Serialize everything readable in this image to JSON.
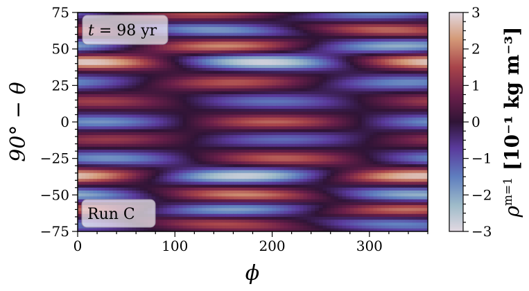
{
  "chart_data": {
    "type": "heatmap",
    "xlabel": "ϕ",
    "ylabel": "90° − θ",
    "xlim": [
      0,
      360
    ],
    "ylim": [
      -75,
      75
    ],
    "x_ticks": [
      {
        "value": 0,
        "label": "0"
      },
      {
        "value": 100,
        "label": "100"
      },
      {
        "value": 200,
        "label": "200"
      },
      {
        "value": 300,
        "label": "300"
      }
    ],
    "y_ticks": [
      {
        "value": 75,
        "label": "75"
      },
      {
        "value": 50,
        "label": "50"
      },
      {
        "value": 25,
        "label": "25"
      },
      {
        "value": 0,
        "label": "0"
      },
      {
        "value": -25,
        "label": "−25"
      },
      {
        "value": -50,
        "label": "−50"
      },
      {
        "value": -75,
        "label": "−75"
      }
    ],
    "colorbar": {
      "label": "ρ^{m=1} [10⁻¹ kg m⁻³]",
      "label_parts": {
        "rho": "ρ",
        "sup": "m=1",
        "units": " [10⁻¹ kg m⁻³]"
      },
      "range": [
        -3,
        3
      ],
      "ticks": [
        {
          "value": 3,
          "label": "3"
        },
        {
          "value": 2,
          "label": "2"
        },
        {
          "value": 1,
          "label": "1"
        },
        {
          "value": 0,
          "label": "0"
        },
        {
          "value": -1,
          "label": "−1"
        },
        {
          "value": -2,
          "label": "−2"
        },
        {
          "value": -3,
          "label": "−3"
        }
      ],
      "colormap": "twilight_shifted"
    },
    "annotations": {
      "time": "t = 98 yr",
      "time_var": "t",
      "time_rest": " = 98 yr",
      "run": "Run C"
    },
    "bands": [
      {
        "lat": 74,
        "amp": 1.6,
        "phase_deg": 130,
        "tilt": -0.8
      },
      {
        "lat": 63,
        "amp": 1.9,
        "phase_deg": 320,
        "tilt": 0.7
      },
      {
        "lat": 52,
        "amp": 2.2,
        "phase_deg": 150,
        "tilt": -0.4
      },
      {
        "lat": 41,
        "amp": 2.9,
        "phase_deg": 10,
        "tilt": 0.3
      },
      {
        "lat": 27,
        "amp": 1.7,
        "phase_deg": 160,
        "tilt": -0.3
      },
      {
        "lat": 14,
        "amp": 1.4,
        "phase_deg": 20,
        "tilt": 0.2
      },
      {
        "lat": 0,
        "amp": 1.8,
        "phase_deg": 200,
        "tilt": 0.0
      },
      {
        "lat": -12,
        "amp": 1.3,
        "phase_deg": 30,
        "tilt": -0.2
      },
      {
        "lat": -25,
        "amp": 1.8,
        "phase_deg": 210,
        "tilt": 0.2
      },
      {
        "lat": -37,
        "amp": 2.8,
        "phase_deg": 350,
        "tilt": -0.3
      },
      {
        "lat": -50,
        "amp": 2.2,
        "phase_deg": 170,
        "tilt": 0.5
      },
      {
        "lat": -60,
        "amp": 2.0,
        "phase_deg": 340,
        "tilt": -0.6
      },
      {
        "lat": -70,
        "amp": 1.6,
        "phase_deg": 150,
        "tilt": 0.7
      }
    ]
  }
}
